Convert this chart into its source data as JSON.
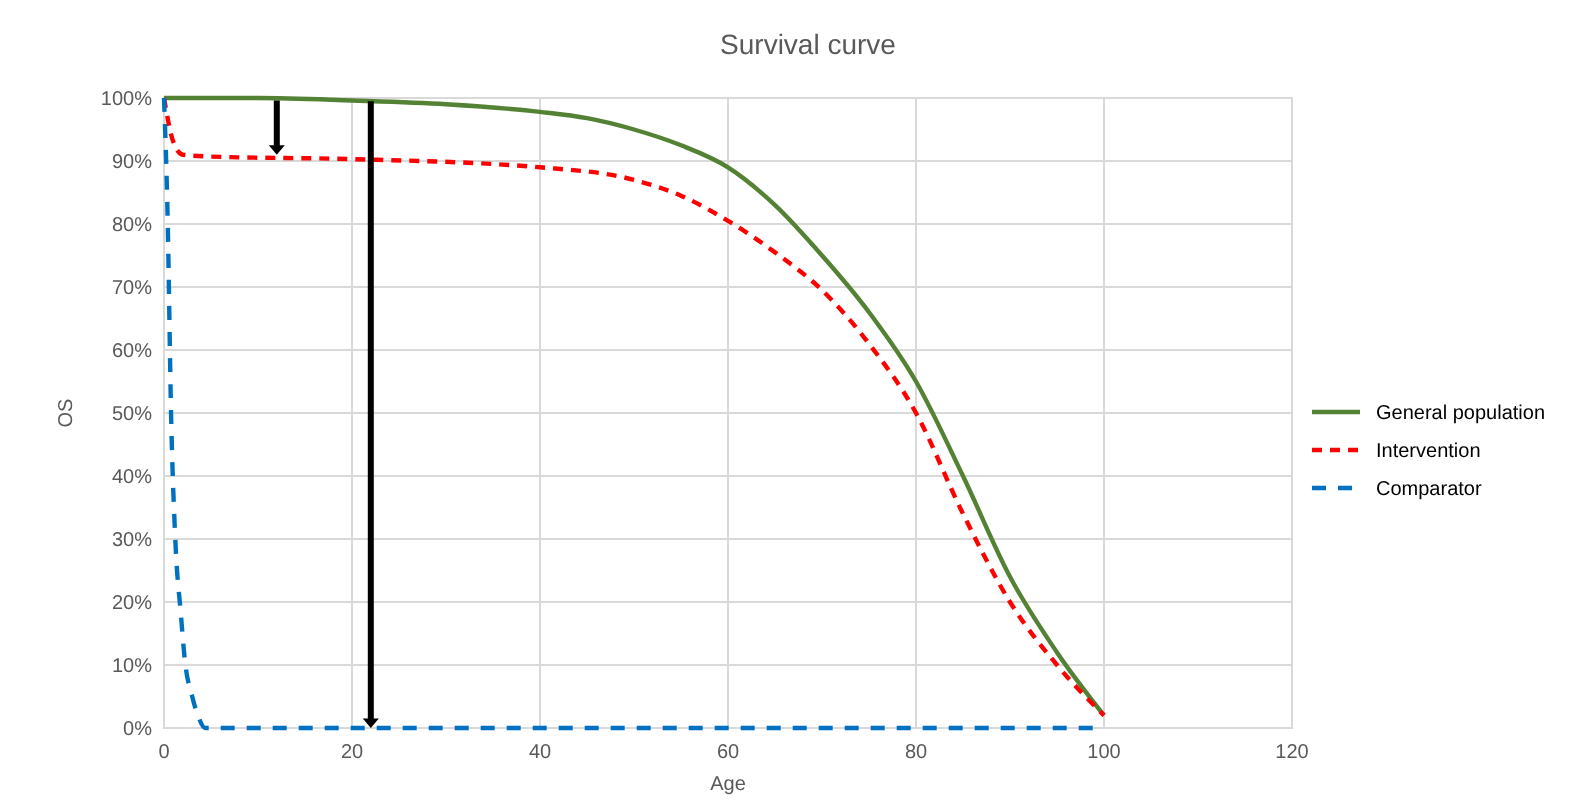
{
  "chart_data": {
    "type": "line",
    "title": "Survival curve",
    "xlabel": "Age",
    "ylabel": "OS",
    "xlim": [
      0,
      120
    ],
    "xticks": [
      0,
      20,
      40,
      60,
      80,
      100,
      120
    ],
    "ylim": [
      0,
      100
    ],
    "yticks": [
      {
        "value": 0,
        "label": "0%"
      },
      {
        "value": 10,
        "label": "10%"
      },
      {
        "value": 20,
        "label": "20%"
      },
      {
        "value": 30,
        "label": "30%"
      },
      {
        "value": 40,
        "label": "40%"
      },
      {
        "value": 50,
        "label": "50%"
      },
      {
        "value": 60,
        "label": "60%"
      },
      {
        "value": 70,
        "label": "70%"
      },
      {
        "value": 80,
        "label": "80%"
      },
      {
        "value": 90,
        "label": "90%"
      },
      {
        "value": 100,
        "label": "100%"
      }
    ],
    "grid": true,
    "legend": "right",
    "marker": "none",
    "series": [
      {
        "name": "General population",
        "color": "#548235",
        "line_style": "solid",
        "x": [
          0,
          10,
          20,
          30,
          40,
          45,
          50,
          55,
          60,
          65,
          70,
          75,
          80,
          85,
          90,
          95,
          100
        ],
        "values": [
          100,
          100,
          99.6,
          99,
          97.8,
          96.8,
          95,
          92.5,
          89,
          83,
          75,
          66,
          55,
          40,
          24,
          12,
          2
        ]
      },
      {
        "name": "Intervention",
        "color": "#ff0000",
        "line_style": "dashed",
        "x": [
          0,
          1,
          2,
          5,
          20,
          40,
          50,
          55,
          60,
          65,
          70,
          75,
          80,
          85,
          90,
          95,
          100
        ],
        "values": [
          100,
          93,
          91,
          90.7,
          90.3,
          89,
          87,
          84.5,
          80.5,
          75.5,
          69.5,
          61,
          50,
          34,
          20,
          10,
          2
        ]
      },
      {
        "name": "Comparator",
        "color": "#0070c0",
        "line_style": "dashed",
        "x": [
          0,
          0.4,
          0.75,
          1.2,
          1.8,
          2.2,
          3,
          3.6,
          4.4,
          100
        ],
        "values": [
          100,
          80,
          50,
          30,
          18,
          11,
          5,
          2,
          0,
          0
        ]
      }
    ]
  }
}
